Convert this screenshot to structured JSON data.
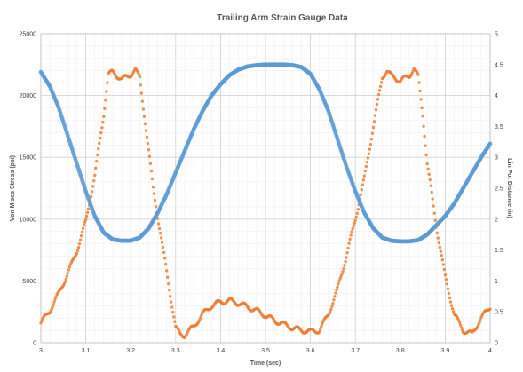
{
  "chart_data": {
    "type": "scatter",
    "title": "Trailing Arm Strain Gauge Data",
    "xlabel": "Time (sec)",
    "ylabel": "Von Mises Stress (psi)",
    "y2label": "Lin Pot Distance (in)",
    "xlim": [
      3,
      4
    ],
    "ylim": [
      0,
      25000
    ],
    "y2lim": [
      0,
      5
    ],
    "x_ticks": [
      "3",
      "3.1",
      "3.2",
      "3.3",
      "3.4",
      "3.5",
      "3.6",
      "3.7",
      "3.8",
      "3.9",
      "4"
    ],
    "y_ticks": [
      "0",
      "5000",
      "10000",
      "15000",
      "20000",
      "25000"
    ],
    "y2_ticks": [
      "0",
      "0.5",
      "1",
      "1.5",
      "2",
      "2.5",
      "3",
      "3.5",
      "4",
      "4.5",
      "5"
    ],
    "grid": true,
    "legend": "none",
    "series": [
      {
        "axis": "left",
        "color": "#ED7D31",
        "points": [
          [
            3.0,
            1600
          ],
          [
            3.02,
            2600
          ],
          [
            3.04,
            4000
          ],
          [
            3.06,
            5600
          ],
          [
            3.08,
            7400
          ],
          [
            3.1,
            9800
          ],
          [
            3.12,
            13500
          ],
          [
            3.14,
            18500
          ],
          [
            3.15,
            21700
          ],
          [
            3.16,
            21900
          ],
          [
            3.18,
            21300
          ],
          [
            3.2,
            21700
          ],
          [
            3.21,
            22100
          ],
          [
            3.22,
            21400
          ],
          [
            3.23,
            18500
          ],
          [
            3.25,
            12500
          ],
          [
            3.27,
            8000
          ],
          [
            3.29,
            3500
          ],
          [
            3.3,
            1200
          ],
          [
            3.31,
            700
          ],
          [
            3.32,
            600
          ],
          [
            3.34,
            1300
          ],
          [
            3.36,
            2300
          ],
          [
            3.38,
            3000
          ],
          [
            3.4,
            3300
          ],
          [
            3.42,
            3400
          ],
          [
            3.44,
            3200
          ],
          [
            3.46,
            2900
          ],
          [
            3.48,
            2600
          ],
          [
            3.5,
            2200
          ],
          [
            3.52,
            1800
          ],
          [
            3.54,
            1500
          ],
          [
            3.56,
            1200
          ],
          [
            3.58,
            1000
          ],
          [
            3.6,
            900
          ],
          [
            3.62,
            1000
          ],
          [
            3.64,
            2300
          ],
          [
            3.66,
            4300
          ],
          [
            3.68,
            7000
          ],
          [
            3.7,
            10000
          ],
          [
            3.72,
            13300
          ],
          [
            3.74,
            17500
          ],
          [
            3.76,
            21500
          ],
          [
            3.77,
            22000
          ],
          [
            3.78,
            21600
          ],
          [
            3.8,
            21200
          ],
          [
            3.82,
            21600
          ],
          [
            3.83,
            22200
          ],
          [
            3.84,
            21500
          ],
          [
            3.85,
            18500
          ],
          [
            3.86,
            14500
          ],
          [
            3.88,
            9500
          ],
          [
            3.9,
            5300
          ],
          [
            3.92,
            2300
          ],
          [
            3.94,
            1000
          ],
          [
            3.96,
            700
          ],
          [
            3.98,
            2000
          ],
          [
            4.0,
            2900
          ]
        ]
      },
      {
        "axis": "right",
        "color": "#5B9BD5",
        "points": [
          [
            3.0,
            4.38
          ],
          [
            3.02,
            4.15
          ],
          [
            3.04,
            3.8
          ],
          [
            3.06,
            3.35
          ],
          [
            3.08,
            2.9
          ],
          [
            3.1,
            2.45
          ],
          [
            3.12,
            2.05
          ],
          [
            3.14,
            1.78
          ],
          [
            3.16,
            1.67
          ],
          [
            3.18,
            1.65
          ],
          [
            3.2,
            1.65
          ],
          [
            3.22,
            1.7
          ],
          [
            3.24,
            1.85
          ],
          [
            3.26,
            2.1
          ],
          [
            3.28,
            2.4
          ],
          [
            3.3,
            2.75
          ],
          [
            3.32,
            3.1
          ],
          [
            3.34,
            3.45
          ],
          [
            3.36,
            3.75
          ],
          [
            3.38,
            4.0
          ],
          [
            3.4,
            4.18
          ],
          [
            3.42,
            4.33
          ],
          [
            3.44,
            4.42
          ],
          [
            3.46,
            4.47
          ],
          [
            3.48,
            4.49
          ],
          [
            3.5,
            4.5
          ],
          [
            3.52,
            4.5
          ],
          [
            3.54,
            4.5
          ],
          [
            3.56,
            4.49
          ],
          [
            3.58,
            4.46
          ],
          [
            3.6,
            4.35
          ],
          [
            3.62,
            4.1
          ],
          [
            3.64,
            3.75
          ],
          [
            3.66,
            3.3
          ],
          [
            3.68,
            2.85
          ],
          [
            3.7,
            2.45
          ],
          [
            3.72,
            2.1
          ],
          [
            3.74,
            1.85
          ],
          [
            3.76,
            1.7
          ],
          [
            3.78,
            1.65
          ],
          [
            3.8,
            1.64
          ],
          [
            3.82,
            1.64
          ],
          [
            3.84,
            1.66
          ],
          [
            3.86,
            1.75
          ],
          [
            3.88,
            1.9
          ],
          [
            3.9,
            2.05
          ],
          [
            3.92,
            2.25
          ],
          [
            3.94,
            2.5
          ],
          [
            3.96,
            2.75
          ],
          [
            3.98,
            3.0
          ],
          [
            4.0,
            3.22
          ]
        ]
      }
    ]
  }
}
